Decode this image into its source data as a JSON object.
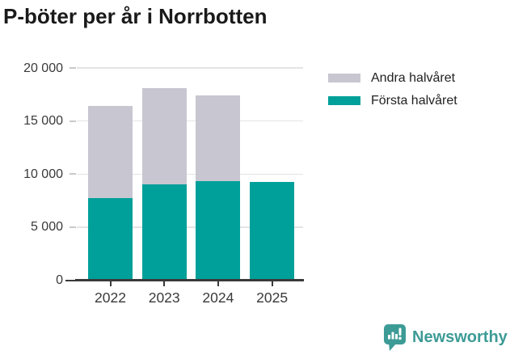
{
  "title": "P-böter per år i Norrbotten",
  "chart_data": {
    "type": "bar",
    "stacked": true,
    "title": "P-böter per år i Norrbotten",
    "categories": [
      "2022",
      "2023",
      "2024",
      "2025"
    ],
    "series": [
      {
        "name": "Första halvåret",
        "color": "#00a09a",
        "values": [
          7750,
          9000,
          9300,
          9260
        ]
      },
      {
        "name": "Andra halvåret",
        "color": "#c8c6d0",
        "values": [
          8700,
          9080,
          8080,
          null
        ]
      }
    ],
    "totals": [
      16450,
      18080,
      17380,
      9260
    ],
    "xlabel": "",
    "ylabel": "",
    "ylim": [
      0,
      20000
    ],
    "yticks": [
      {
        "value": 0,
        "label": "0"
      },
      {
        "value": 5000,
        "label": "5 000"
      },
      {
        "value": 10000,
        "label": "10 000"
      },
      {
        "value": 15000,
        "label": "15 000"
      },
      {
        "value": 20000,
        "label": "20 000"
      }
    ],
    "grid": true,
    "legend_position": "top-right"
  },
  "legend": {
    "items": [
      {
        "label": "Andra halvåret",
        "color": "#c8c6d0"
      },
      {
        "label": "Första halvåret",
        "color": "#00a09a"
      }
    ]
  },
  "branding": {
    "wordmark": "Newsworthy",
    "color": "#3d9b96"
  }
}
